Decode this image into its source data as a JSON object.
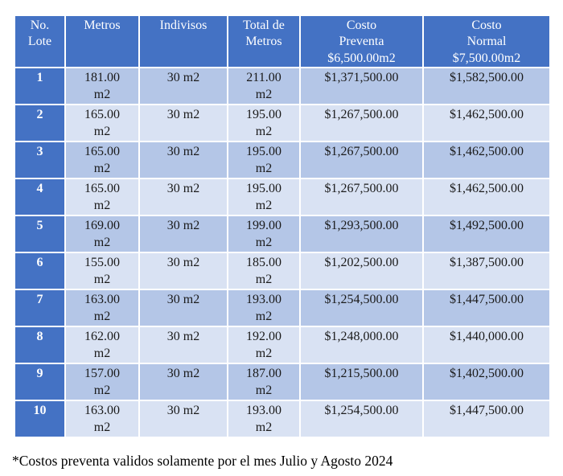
{
  "colors": {
    "header_bg": "#4472C4",
    "row_dark_bg": "#B4C6E7",
    "row_light_bg": "#D9E2F3",
    "header_text": "#FFFFFF",
    "cell_text": "#1A1A1A",
    "border": "#FFFFFF"
  },
  "table": {
    "header": [
      "No.\nLote",
      "Metros",
      "Indivisos",
      "Total de\nMetros",
      "Costo\nPreventa\n$6,500.00m2",
      "Costo\nNormal\n$7,500.00m2"
    ],
    "rows": [
      [
        "1",
        "181.00\nm2",
        "30 m2",
        "211.00\nm2",
        "$1,371,500.00",
        "$1,582,500.00"
      ],
      [
        "2",
        "165.00\nm2",
        "30 m2",
        "195.00\nm2",
        "$1,267,500.00",
        "$1,462,500.00"
      ],
      [
        "3",
        "165.00\nm2",
        "30 m2",
        "195.00\nm2",
        "$1,267,500.00",
        "$1,462,500.00"
      ],
      [
        "4",
        "165.00\nm2",
        "30 m2",
        "195.00\nm2",
        "$1,267,500.00",
        "$1,462,500.00"
      ],
      [
        "5",
        "169.00\nm2",
        "30 m2",
        "199.00\nm2",
        "$1,293,500.00",
        "$1,492,500.00"
      ],
      [
        "6",
        "155.00\nm2",
        "30 m2",
        "185.00\nm2",
        "$1,202,500.00",
        "$1,387,500.00"
      ],
      [
        "7",
        "163.00\nm2",
        "30 m2",
        "193.00\nm2",
        "$1,254,500.00",
        "$1,447,500.00"
      ],
      [
        "8",
        "162.00\nm2",
        "30 m2",
        "192.00\nm2",
        "$1,248,000.00",
        "$1,440,000.00"
      ],
      [
        "9",
        "157.00\nm2",
        "30 m2",
        "187.00\nm2",
        "$1,215,500.00",
        "$1,402,500.00"
      ],
      [
        "10",
        "163.00\nm2",
        "30 m2",
        "193.00\nm2",
        "$1,254,500.00",
        "$1,447,500.00"
      ]
    ]
  },
  "footnote": "*Costos preventa validos solamente por el mes Julio y Agosto 2024"
}
